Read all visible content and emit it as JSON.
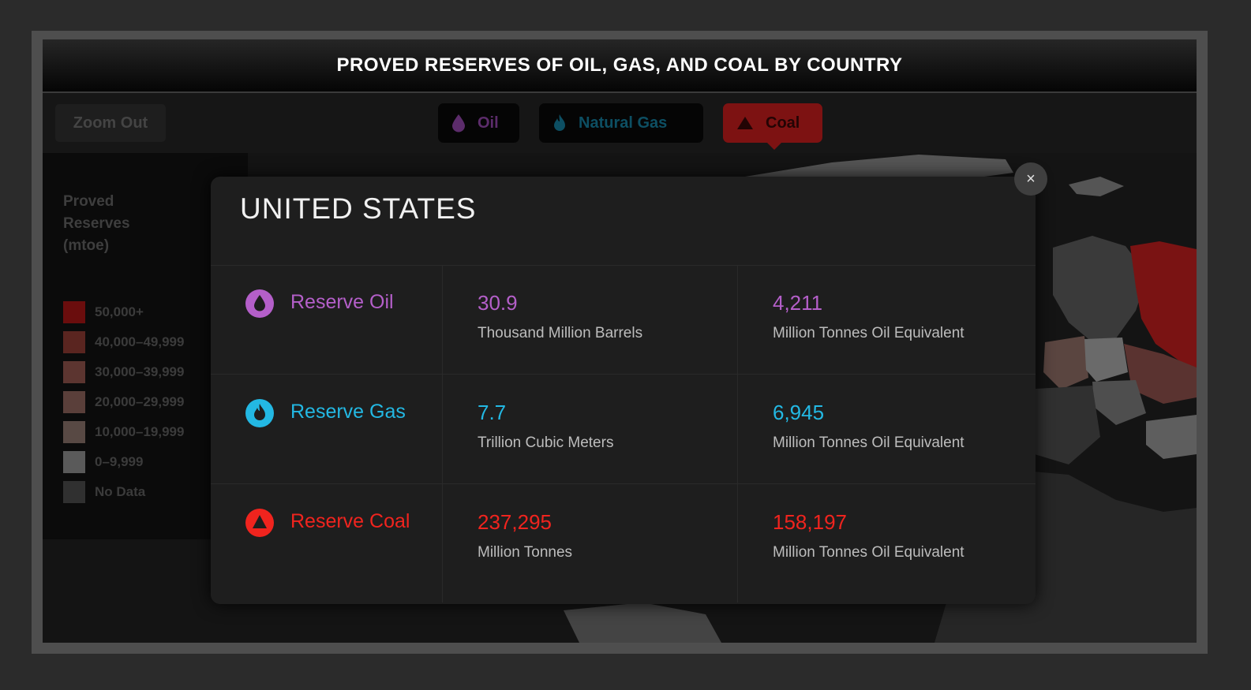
{
  "header": {
    "title": "PROVED RESERVES OF OIL, GAS, AND COAL BY COUNTRY"
  },
  "toolbar": {
    "zoom_out_label": "Zoom Out",
    "layers": [
      {
        "label": "Oil",
        "icon": "drop-icon"
      },
      {
        "label": "Natural Gas",
        "icon": "flame-icon"
      },
      {
        "label": "Coal",
        "icon": "coal-pile-icon",
        "selected": true
      }
    ]
  },
  "legend": {
    "title": "Proved Reserves (mtoe)",
    "items": [
      {
        "label": "50,000+",
        "color": "#6a0d0d"
      },
      {
        "label": "40,000–49,999",
        "color": "#5a2520"
      },
      {
        "label": "30,000–39,999",
        "color": "#5c3530"
      },
      {
        "label": "20,000–29,999",
        "color": "#5a3f3a"
      },
      {
        "label": "10,000–19,999",
        "color": "#584944"
      },
      {
        "label": "0–9,999",
        "color": "#5a5a5a"
      },
      {
        "label": "No Data",
        "color": "#303030"
      }
    ]
  },
  "popup": {
    "country": "UNITED STATES",
    "close_label": "×",
    "rows": [
      {
        "label": "Reserve Oil",
        "color": "#b45fc9",
        "icon": "drop-icon",
        "value": "30.9",
        "unit": "Thousand Million Barrels",
        "equivalent": "4,211",
        "equivalent_unit": "Million Tonnes Oil Equivalent"
      },
      {
        "label": "Reserve Gas",
        "color": "#23b8e3",
        "icon": "flame-icon",
        "value": "7.7",
        "unit": "Trillion Cubic Meters",
        "equivalent": "6,945",
        "equivalent_unit": "Million Tonnes Oil Equivalent"
      },
      {
        "label": "Reserve Coal",
        "color": "#f0241e",
        "icon": "coal-pile-icon",
        "value": "237,295",
        "unit": "Million Tonnes",
        "equivalent": "158,197",
        "equivalent_unit": "Million Tonnes Oil Equivalent"
      }
    ]
  },
  "colors": {
    "oil": "#b45fc9",
    "gas": "#23b8e3",
    "coal": "#f0241e",
    "coal_button": "#7d1212"
  }
}
